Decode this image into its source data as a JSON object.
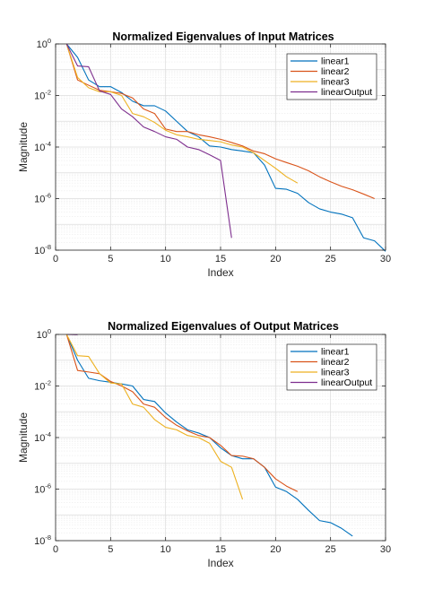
{
  "chart_data": [
    {
      "type": "line",
      "title": "Normalized Eigenvalues of Input Matrices",
      "xlabel": "Index",
      "ylabel": "Magnitude",
      "xlim": [
        0,
        30
      ],
      "ylim": [
        1e-08,
        1
      ],
      "yscale": "log",
      "xticks": [
        "0",
        "5",
        "10",
        "15",
        "20",
        "25",
        "30"
      ],
      "yticks": [
        {
          "base": "10",
          "exp": "0"
        },
        {
          "base": "10",
          "exp": "-2"
        },
        {
          "base": "10",
          "exp": "-4"
        },
        {
          "base": "10",
          "exp": "-6"
        },
        {
          "base": "10",
          "exp": "-8"
        }
      ],
      "grid": true,
      "legend_position": "top-right",
      "series": [
        {
          "name": "linear1",
          "color": "#0072BD",
          "x": [
            1,
            2,
            3,
            4,
            5,
            6,
            7,
            8,
            9,
            10,
            11,
            12,
            13,
            14,
            15,
            16,
            17,
            18,
            19,
            20,
            21,
            22,
            23,
            24,
            25,
            26,
            27,
            28,
            29,
            30
          ],
          "y": [
            1,
            0.3,
            0.04,
            0.022,
            0.022,
            0.013,
            0.006,
            0.004,
            0.004,
            0.0025,
            0.001,
            0.0004,
            0.00025,
            0.00011,
            0.0001,
            8e-05,
            7e-05,
            6e-05,
            2e-05,
            2.5e-06,
            2.3e-06,
            1.6e-06,
            7e-07,
            4e-07,
            3e-07,
            2.5e-07,
            1.8e-07,
            3e-08,
            2.3e-08,
            9e-09
          ]
        },
        {
          "name": "linear2",
          "color": "#D95319",
          "x": [
            1,
            2,
            3,
            4,
            5,
            6,
            7,
            8,
            9,
            10,
            11,
            12,
            13,
            14,
            15,
            16,
            17,
            18,
            19,
            20,
            21,
            22,
            23,
            24,
            25,
            26,
            27,
            28,
            29
          ],
          "y": [
            1,
            0.04,
            0.025,
            0.016,
            0.014,
            0.012,
            0.008,
            0.003,
            0.002,
            0.0005,
            0.0004,
            0.0004,
            0.0003,
            0.00025,
            0.0002,
            0.00015,
            0.00011,
            7e-05,
            5.5e-05,
            3.5e-05,
            2.5e-05,
            1.8e-05,
            1.2e-05,
            7e-06,
            4.5e-06,
            3e-06,
            2.2e-06,
            1.5e-06,
            1e-06
          ]
        },
        {
          "name": "linear3",
          "color": "#EDB120",
          "x": [
            1,
            2,
            3,
            4,
            5,
            6,
            7,
            8,
            9,
            10,
            11,
            12,
            13,
            14,
            15,
            16,
            17,
            18,
            19,
            20,
            21,
            22
          ],
          "y": [
            1,
            0.05,
            0.02,
            0.014,
            0.014,
            0.01,
            0.002,
            0.0015,
            0.0009,
            0.00045,
            0.0003,
            0.00025,
            0.0002,
            0.00018,
            0.00016,
            0.00012,
            0.0001,
            6e-05,
            3e-05,
            1.5e-05,
            7e-06,
            4e-06
          ]
        },
        {
          "name": "linearOutput",
          "color": "#7E2F8E",
          "x": [
            1,
            2,
            3,
            4,
            5,
            6,
            7,
            8,
            9,
            10,
            11,
            12,
            13,
            14,
            15,
            16
          ],
          "y": [
            1,
            0.14,
            0.13,
            0.015,
            0.011,
            0.003,
            0.0015,
            0.0006,
            0.0004,
            0.00025,
            0.0002,
            0.0001,
            8e-05,
            5e-05,
            3e-05,
            3e-08
          ]
        }
      ]
    },
    {
      "type": "line",
      "title": "Normalized Eigenvalues of Output Matrices",
      "xlabel": "Index",
      "ylabel": "Magnitude",
      "xlim": [
        0,
        30
      ],
      "ylim": [
        1e-08,
        1
      ],
      "yscale": "log",
      "xticks": [
        "0",
        "5",
        "10",
        "15",
        "20",
        "25",
        "30"
      ],
      "yticks": [
        {
          "base": "10",
          "exp": "0"
        },
        {
          "base": "10",
          "exp": "-2"
        },
        {
          "base": "10",
          "exp": "-4"
        },
        {
          "base": "10",
          "exp": "-6"
        },
        {
          "base": "10",
          "exp": "-8"
        }
      ],
      "grid": true,
      "legend_position": "top-right",
      "series": [
        {
          "name": "linear1",
          "color": "#0072BD",
          "x": [
            1,
            2,
            3,
            4,
            5,
            6,
            7,
            8,
            9,
            10,
            11,
            12,
            13,
            14,
            15,
            16,
            17,
            18,
            19,
            20,
            21,
            22,
            23,
            24,
            25,
            26,
            27
          ],
          "y": [
            1,
            0.1,
            0.02,
            0.016,
            0.014,
            0.012,
            0.01,
            0.003,
            0.0025,
            0.0009,
            0.0004,
            0.0002,
            0.00015,
            0.0001,
            4e-05,
            2e-05,
            1.5e-05,
            1.5e-05,
            7e-06,
            1.2e-06,
            8e-07,
            4e-07,
            1.5e-07,
            6e-08,
            5e-08,
            3e-08,
            1.5e-08
          ]
        },
        {
          "name": "linear2",
          "color": "#D95319",
          "x": [
            1,
            2,
            3,
            4,
            5,
            6,
            7,
            8,
            9,
            10,
            11,
            12,
            13,
            14,
            15,
            16,
            17,
            18,
            19,
            20,
            21,
            22
          ],
          "y": [
            1,
            0.04,
            0.035,
            0.03,
            0.015,
            0.01,
            0.006,
            0.002,
            0.0015,
            0.0006,
            0.0003,
            0.00018,
            0.00012,
            0.0001,
            5e-05,
            2e-05,
            1.9e-05,
            1.5e-05,
            7e-06,
            2.5e-06,
            1.3e-06,
            8e-07
          ]
        },
        {
          "name": "linear3",
          "color": "#EDB120",
          "x": [
            1,
            2,
            3,
            4,
            5,
            6,
            7,
            8,
            9,
            10,
            11,
            12,
            13,
            14,
            15,
            16,
            17
          ],
          "y": [
            1,
            0.15,
            0.14,
            0.03,
            0.013,
            0.012,
            0.002,
            0.0015,
            0.0005,
            0.00025,
            0.0002,
            0.00012,
            0.0001,
            6e-05,
            1.2e-05,
            7e-06,
            4e-07
          ]
        },
        {
          "name": "linearOutput",
          "color": "#7E2F8E",
          "x": [
            1,
            2
          ],
          "y": [
            1,
            0.97
          ]
        }
      ]
    }
  ]
}
